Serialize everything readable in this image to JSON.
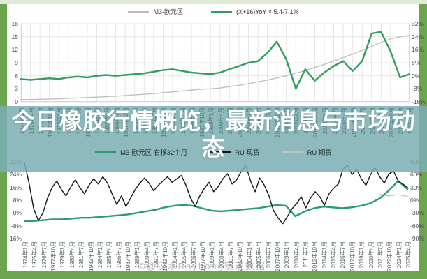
{
  "page": {
    "accent_green": "#6ba64f",
    "top_strip_color": "#e0ead6",
    "banner_color": "#7caeb2",
    "background": "#ffffff"
  },
  "banner": {
    "title_line1": "今日橡胶行情概览，最新消息与市场动",
    "title_line2": "态"
  },
  "watermark": {
    "text": "©@汉水Rayhong宏观数据"
  },
  "chart_data": [
    {
      "type": "line",
      "title": "",
      "grid": true,
      "legend_position": "top",
      "x_categories": [
        "1974年1月",
        "1975年4月",
        "1976年7月",
        "1977年10月",
        "1979年1月",
        "1980年4月",
        "1981年7月",
        "1982年10月",
        "1984年1月",
        "1985年4月",
        "1986年7月",
        "1987年10月",
        "1989年1月",
        "1990年4月",
        "1991年7月",
        "1992年10月",
        "1994年1月",
        "1995年4月",
        "1996年7月",
        "1997年10月",
        "1999年1月",
        "2000年4月",
        "2001年7月",
        "2002年10月",
        "2004年1月",
        "2005年4月",
        "2006年7月",
        "2007年10月",
        "2009年1月",
        "2010年4月",
        "2011年7月",
        "2012年10月",
        "2014年1月",
        "2015年4月",
        "2016年7月",
        "2017年10月",
        "2019年1月",
        "2020年4月",
        "2021年7月",
        "2022年10月",
        "2024年1月",
        "2025年4月"
      ],
      "left_axis": {
        "ticks": [
          "18",
          "15",
          "12",
          "9",
          "6",
          "3",
          "0"
        ],
        "min": 0,
        "max": 18
      },
      "right_axis": {
        "ticks": [
          "32%",
          "24%",
          "16%",
          "8%",
          "0%",
          "-8%",
          "-16%"
        ],
        "min": -16,
        "max": 32
      },
      "series": [
        {
          "name": "M3-欧元区",
          "color": "#bdbdbd",
          "axis": "left",
          "width": 1.3,
          "values": [
            0.5,
            0.55,
            0.6,
            0.65,
            0.7,
            0.8,
            0.9,
            1.0,
            1.1,
            1.2,
            1.3,
            1.45,
            1.6,
            1.75,
            1.9,
            2.1,
            2.3,
            2.5,
            2.7,
            2.9,
            3.0,
            3.2,
            3.5,
            3.8,
            4.2,
            4.6,
            5.0,
            5.5,
            6.0,
            6.6,
            7.2,
            7.9,
            8.6,
            9.4,
            10.2,
            11.0,
            11.9,
            12.8,
            13.7,
            14.5,
            15.0,
            15.3
          ]
        },
        {
          "name": "(X+16)YoY × 5.4-7.1%",
          "color": "#2f9e5f",
          "axis": "right",
          "width": 2.4,
          "values": [
            -2,
            -2.5,
            -2,
            -1.5,
            -2,
            -1,
            -0.5,
            -1,
            0,
            0.5,
            0,
            0.5,
            1,
            1.5,
            2.5,
            3.5,
            4,
            3,
            2,
            1.5,
            1,
            2,
            4,
            6,
            8,
            9,
            14,
            21,
            10,
            -8,
            4,
            -3,
            2,
            6,
            9,
            3,
            9,
            26,
            27,
            15,
            -1,
            1
          ]
        }
      ]
    },
    {
      "type": "line",
      "title": "",
      "grid": false,
      "legend_position": "top",
      "x_categories": [
        "1974年1月",
        "1975年4月",
        "1976年7月",
        "1977年10月",
        "1979年1月",
        "1980年4月",
        "1981年7月",
        "1982年10月",
        "1984年1月",
        "1985年4月",
        "1986年7月",
        "1987年10月",
        "1989年1月",
        "1990年4月",
        "1991年7月",
        "1992年10月",
        "1994年1月",
        "1995年4月",
        "1996年7月",
        "1997年10月",
        "1999年1月",
        "2000年4月",
        "2001年7月",
        "2002年10月",
        "2004年1月",
        "2005年4月",
        "2006年7月",
        "2007年10月",
        "2009年1月",
        "2010年4月",
        "2011年7月",
        "2012年10月",
        "2014年1月",
        "2015年4月",
        "2016年7月",
        "2017年10月",
        "2019年1月",
        "2020年4月",
        "2021年7月",
        "2022年10月",
        "2024年1月",
        "2025年4月"
      ],
      "left_axis": {
        "ticks": [
          "32%",
          "24%",
          "16%",
          "8%",
          "0%",
          "-8%",
          "-16%"
        ],
        "min": -16,
        "max": 32
      },
      "right_axis": {
        "ticks": [
          "90%",
          "60%",
          "30%",
          "0%",
          "-30%",
          "-60%",
          "-90%"
        ],
        "min": -90,
        "max": 90
      },
      "series": [
        {
          "name": "M3-欧元区 右移32个月",
          "color": "#2a9d6e",
          "axis": "left",
          "width": 2.4,
          "values": [
            -5,
            -5,
            -4.5,
            -4,
            -4,
            -3.5,
            -3,
            -3,
            -2.5,
            -2,
            -1.5,
            -1,
            0,
            1,
            2,
            3.5,
            4.5,
            5,
            4.5,
            3,
            1.5,
            1,
            1.5,
            2,
            2.5,
            3,
            4,
            5,
            4.5,
            -2,
            1,
            3,
            4,
            3.5,
            3,
            3.5,
            4.5,
            6,
            9,
            14,
            20,
            15
          ]
        },
        {
          "name": "RU 现货",
          "color": "#141414",
          "axis": "right",
          "width": 1.4,
          "values": [
            88,
            40,
            -20,
            -48,
            -30,
            5,
            30,
            45,
            25,
            10,
            30,
            48,
            30,
            15,
            35,
            50,
            38,
            55,
            40,
            15,
            -10,
            10,
            -15,
            5,
            25,
            40,
            52,
            40,
            22,
            35,
            45,
            55,
            42,
            50,
            58,
            35,
            5,
            -15,
            10,
            28,
            42,
            20,
            32,
            50,
            62,
            38,
            48,
            68,
            80,
            45,
            20,
            52,
            35,
            10,
            -25,
            -42,
            -55,
            -38,
            -20,
            -8,
            8,
            -18,
            5,
            20,
            8,
            -12,
            15,
            28,
            38,
            72,
            82,
            60,
            72,
            50,
            35,
            60,
            76,
            55,
            40,
            62,
            68,
            45,
            38,
            30
          ]
        },
        {
          "name": "RU 期货",
          "color": "#c2c2c2",
          "axis": "right",
          "width": 1.3,
          "values": [
            null,
            null,
            null,
            null,
            null,
            null,
            null,
            null,
            null,
            null,
            null,
            null,
            null,
            null,
            null,
            null,
            null,
            null,
            null,
            null,
            null,
            null,
            null,
            null,
            null,
            null,
            null,
            null,
            null,
            null,
            null,
            null,
            null,
            null,
            null,
            null,
            null,
            null,
            14,
            10,
            13,
            9
          ]
        }
      ]
    }
  ]
}
